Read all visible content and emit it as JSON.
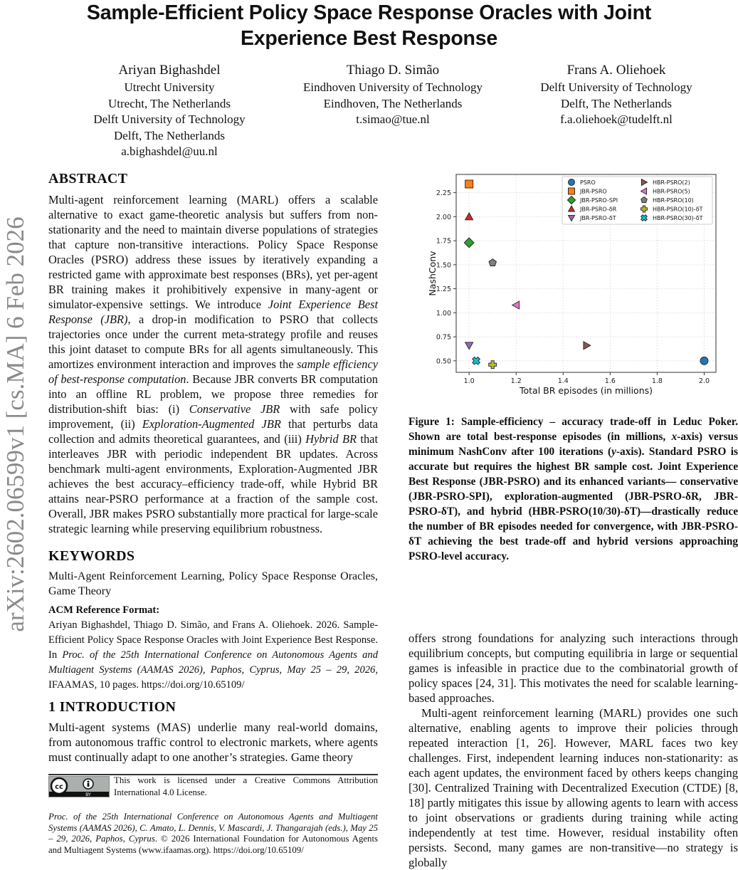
{
  "sidebar_text": "arXiv:2602.06599v1  [cs.MA]  6 Feb 2026",
  "title_line1": "Sample-Efficient Policy Space Response Oracles with Joint",
  "title_line2": "Experience Best Response",
  "authors": [
    {
      "name": "Ariyan Bighashdel",
      "lines": [
        "Utrecht University",
        "Utrecht, The Netherlands",
        "Delft University of Technology",
        "Delft, The Netherlands",
        "a.bighashdel@uu.nl"
      ]
    },
    {
      "name": "Thiago D. Simão",
      "lines": [
        "Eindhoven University of Technology",
        "Eindhoven, The Netherlands",
        "t.simao@tue.nl"
      ]
    },
    {
      "name": "Frans A. Oliehoek",
      "lines": [
        "Delft University of Technology",
        "Delft, The Netherlands",
        "f.a.oliehoek@tudelft.nl"
      ]
    }
  ],
  "abstract_heading": "ABSTRACT",
  "abstract": [
    {
      "t": "Multi-agent reinforcement learning (MARL) offers a scalable alternative to exact game-theoretic analysis but suffers from non-stationarity and the need to maintain diverse populations of strategies that capture non-transitive interactions. Policy Space Response Oracles (PSRO) address these issues by iteratively expanding a restricted game with approximate best responses (BRs), yet per-agent BR training makes it prohibitively expensive in many-agent or simulator-expensive settings. We introduce "
    },
    {
      "t": "Joint Experience Best Response (JBR)",
      "i": true
    },
    {
      "t": ", a drop-in modification to PSRO that collects trajectories once under the current meta-strategy profile and reuses this joint dataset to compute BRs for all agents simultaneously. This amortizes environment interaction and improves the "
    },
    {
      "t": "sample efficiency of best-response computation",
      "i": true
    },
    {
      "t": ". Because JBR converts BR computation into an offline RL problem, we propose three remedies for distribution-shift bias: (i) "
    },
    {
      "t": "Conservative JBR",
      "i": true
    },
    {
      "t": " with safe policy improvement, (ii) "
    },
    {
      "t": "Exploration-Augmented JBR",
      "i": true
    },
    {
      "t": " that perturbs data collection and admits theoretical guarantees, and (iii) "
    },
    {
      "t": "Hybrid BR",
      "i": true
    },
    {
      "t": " that interleaves JBR with periodic independent BR updates. Across benchmark multi-agent environments, Exploration-Augmented JBR achieves the best accuracy–efficiency trade-off, while Hybrid BR attains near-PSRO performance at a fraction of the sample cost. Overall, JBR makes PSRO substantially more practical for large-scale strategic learning while preserving equilibrium robustness."
    }
  ],
  "keywords_heading": "KEYWORDS",
  "keywords": "Multi-Agent Reinforcement Learning, Policy Space Response Oracles, Game Theory",
  "acm_heading": "ACM Reference Format:",
  "acm_ref": [
    {
      "t": "Ariyan Bighashdel, Thiago D. Simão, and Frans A. Oliehoek. 2026. Sample-Efficient Policy Space Response Oracles with Joint Experience Best Response. In "
    },
    {
      "t": "Proc. of the 25th International Conference on Autonomous Agents and Multiagent Systems (AAMAS 2026), Paphos, Cyprus, May 25 – 29, 2026",
      "i": true
    },
    {
      "t": ", IFAAMAS, 10 pages. https://doi.org/10.65109/"
    }
  ],
  "intro_heading": "1    INTRODUCTION",
  "intro_left": [
    {
      "t": "Multi-agent systems (MAS) underlie many real-world domains, from autonomous traffic control to electronic markets, where agents must continually adapt to one another’s strategies. Game theory"
    }
  ],
  "license": {
    "badge": "CC BY",
    "text": "This work is licensed under a Creative Commons Attribution International 4.0 License."
  },
  "proceedings": [
    {
      "t": "Proc. of the 25th International Conference on Autonomous Agents and Multiagent Systems (AAMAS 2026), C. Amato, L. Dennis, V. Mascardi, J. Thangarajah (eds.), May 25 – 29, 2026, Paphos, Cyprus",
      "i": true
    },
    {
      "t": ". © 2026 International Foundation for Autonomous Agents and Multiagent Systems (www.ifaamas.org). https://doi.org/10.65109/"
    }
  ],
  "caption": [
    {
      "t": "Figure 1: Sample-efficiency – accuracy trade-off in Leduc Poker. Shown are total best-response episodes (in millions, "
    },
    {
      "t": "x",
      "i": true
    },
    {
      "t": "-axis) versus minimum NashConv after 100 iterations ("
    },
    {
      "t": "y",
      "i": true
    },
    {
      "t": "-axis). Standard PSRO is accurate but requires the highest BR sample cost. Joint Experience Best Response (JBR-PSRO) and its enhanced variants— conservative (JBR-PSRO-SPI), exploration-augmented (JBR-PSRO-δR, JBR-PSRO-δT), and hybrid (HBR-PSRO(10/30)-δT)—drastically reduce the number of BR episodes needed for convergence, with JBR-PSRO-δT achieving the best trade-off and hybrid versions approaching PSRO-level accuracy."
    }
  ],
  "intro_right_p1": [
    {
      "t": "offers strong foundations for analyzing such interactions through equilibrium concepts, but computing equilibria in large or sequential games is infeasible in practice due to the combinatorial growth of policy spaces [24, 31]. This motivates the need for scalable learning-based approaches."
    }
  ],
  "intro_right_p2": [
    {
      "t": "Multi-agent reinforcement learning (MARL) provides one such alternative, enabling agents to improve their policies through repeated interaction [1, 26]. However, MARL faces two key challenges. First, independent learning induces non-stationarity: as each agent updates, the environment faced by others keeps changing [30]. Centralized Training with Decentralized Execution (CTDE) [8, 18] partly mitigates this issue by allowing agents to learn with access to joint observations or gradients during training while acting independently at test time. However, residual instability often persists. Second, many games are non-transitive—no strategy is globally"
    }
  ],
  "chart_data": {
    "type": "scatter",
    "xlabel": "Total BR episodes (in millions)",
    "ylabel": "NashConv",
    "xlim": [
      0.945,
      2.05
    ],
    "ylim": [
      0.38,
      2.44
    ],
    "xticks": [
      1.0,
      1.2,
      1.4,
      1.6,
      1.8,
      2.0
    ],
    "xtick_labels": [
      "1.0",
      "1.2",
      "1.4",
      "1.6",
      "1.8",
      "2.0"
    ],
    "yticks": [
      0.5,
      0.75,
      1.0,
      1.25,
      1.5,
      1.75,
      2.0,
      2.25
    ],
    "ytick_labels": [
      "0.50",
      "0.75",
      "1.00",
      "1.25",
      "1.50",
      "1.75",
      "2.00",
      "2.25"
    ],
    "grid": true,
    "legend_placement": "top-right",
    "series": [
      {
        "name": "PSRO",
        "marker": "circle",
        "color": "#1f77b4",
        "x": 2.0,
        "y": 0.5
      },
      {
        "name": "JBR-PSRO",
        "marker": "square",
        "color": "#ff7f0e",
        "x": 1.0,
        "y": 2.34
      },
      {
        "name": "JBR-PSRO-SPI",
        "marker": "diamond",
        "color": "#2ca02c",
        "x": 1.0,
        "y": 1.73
      },
      {
        "name": "JBR-PSRO-δR",
        "marker": "triangle-up",
        "color": "#d62728",
        "x": 1.0,
        "y": 2.0
      },
      {
        "name": "JBR-PSRO-δT",
        "marker": "triangle-down",
        "color": "#9467bd",
        "x": 1.0,
        "y": 0.66
      },
      {
        "name": "HBR-PSRO(2)",
        "marker": "triangle-right",
        "color": "#8c564b",
        "x": 1.5,
        "y": 0.66
      },
      {
        "name": "HBR-PSRO(5)",
        "marker": "triangle-left",
        "color": "#e377c2",
        "x": 1.2,
        "y": 1.08
      },
      {
        "name": "HBR-PSRO(10)",
        "marker": "pentagon",
        "color": "#7f7f7f",
        "x": 1.1,
        "y": 1.52
      },
      {
        "name": "HBR-PSRO(10)-δT",
        "marker": "plus",
        "color": "#bcbd22",
        "x": 1.1,
        "y": 0.46
      },
      {
        "name": "HBR-PSRO(30)-δT",
        "marker": "x",
        "color": "#17becf",
        "x": 1.03,
        "y": 0.5
      }
    ]
  }
}
